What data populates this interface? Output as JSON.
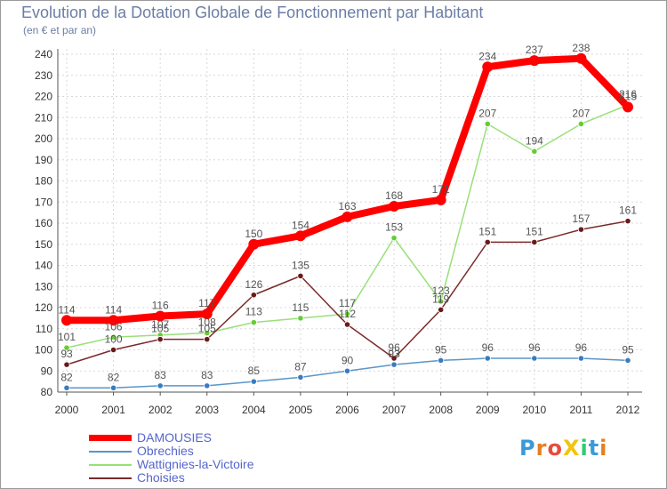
{
  "logo": {
    "text": "ProXiti",
    "letters": [
      "P",
      "r",
      "o",
      "X",
      "i",
      "t",
      "i"
    ],
    "colors": [
      "#3a9ad9",
      "#e67e22",
      "#e74c3c",
      "#f1c40f",
      "#2ecc71",
      "#3a9ad9",
      "#e67e22"
    ]
  },
  "chart_data": {
    "type": "line",
    "title": "Evolution de la Dotation Globale de Fonctionnement par Habitant",
    "subtitle": "(en € et par an)",
    "xlabel": "",
    "ylabel": "",
    "ylim": [
      80,
      240
    ],
    "ytick_step": 10,
    "grid": true,
    "legend_position": "bottom-left",
    "x": [
      "2000",
      "2001",
      "2002",
      "2003",
      "2004",
      "2005",
      "2006",
      "2007",
      "2008",
      "2009",
      "2010",
      "2011",
      "2012"
    ],
    "series": [
      {
        "name": "Obrechies",
        "color": "#5b95c8",
        "marker": "#3a7bbf",
        "width": 1.5,
        "values": [
          82,
          82,
          83,
          83,
          85,
          87,
          90,
          93,
          95,
          96,
          96,
          96,
          95
        ]
      },
      {
        "name": "Wattignies-la-Victoire",
        "color": "#99e07a",
        "marker": "#66cc33",
        "width": 1.5,
        "values": [
          101,
          106,
          107,
          108,
          113,
          115,
          117,
          153,
          123,
          207,
          194,
          207,
          216
        ]
      },
      {
        "name": "Choisies",
        "color": "#7a2a2a",
        "marker": "#6a1a1a",
        "width": 1.5,
        "values": [
          93,
          100,
          105,
          105,
          126,
          135,
          112,
          96,
          119,
          151,
          151,
          157,
          161
        ]
      },
      {
        "name": "DAMOUSIES",
        "color": "#ff0000",
        "marker": "#ff0000",
        "width": 8,
        "values": [
          114,
          114,
          116,
          117,
          150,
          154,
          163,
          168,
          171,
          234,
          237,
          238,
          215
        ]
      }
    ],
    "legend_order": [
      "DAMOUSIES",
      "Obrechies",
      "Wattignies-la-Victoire",
      "Choisies"
    ]
  }
}
